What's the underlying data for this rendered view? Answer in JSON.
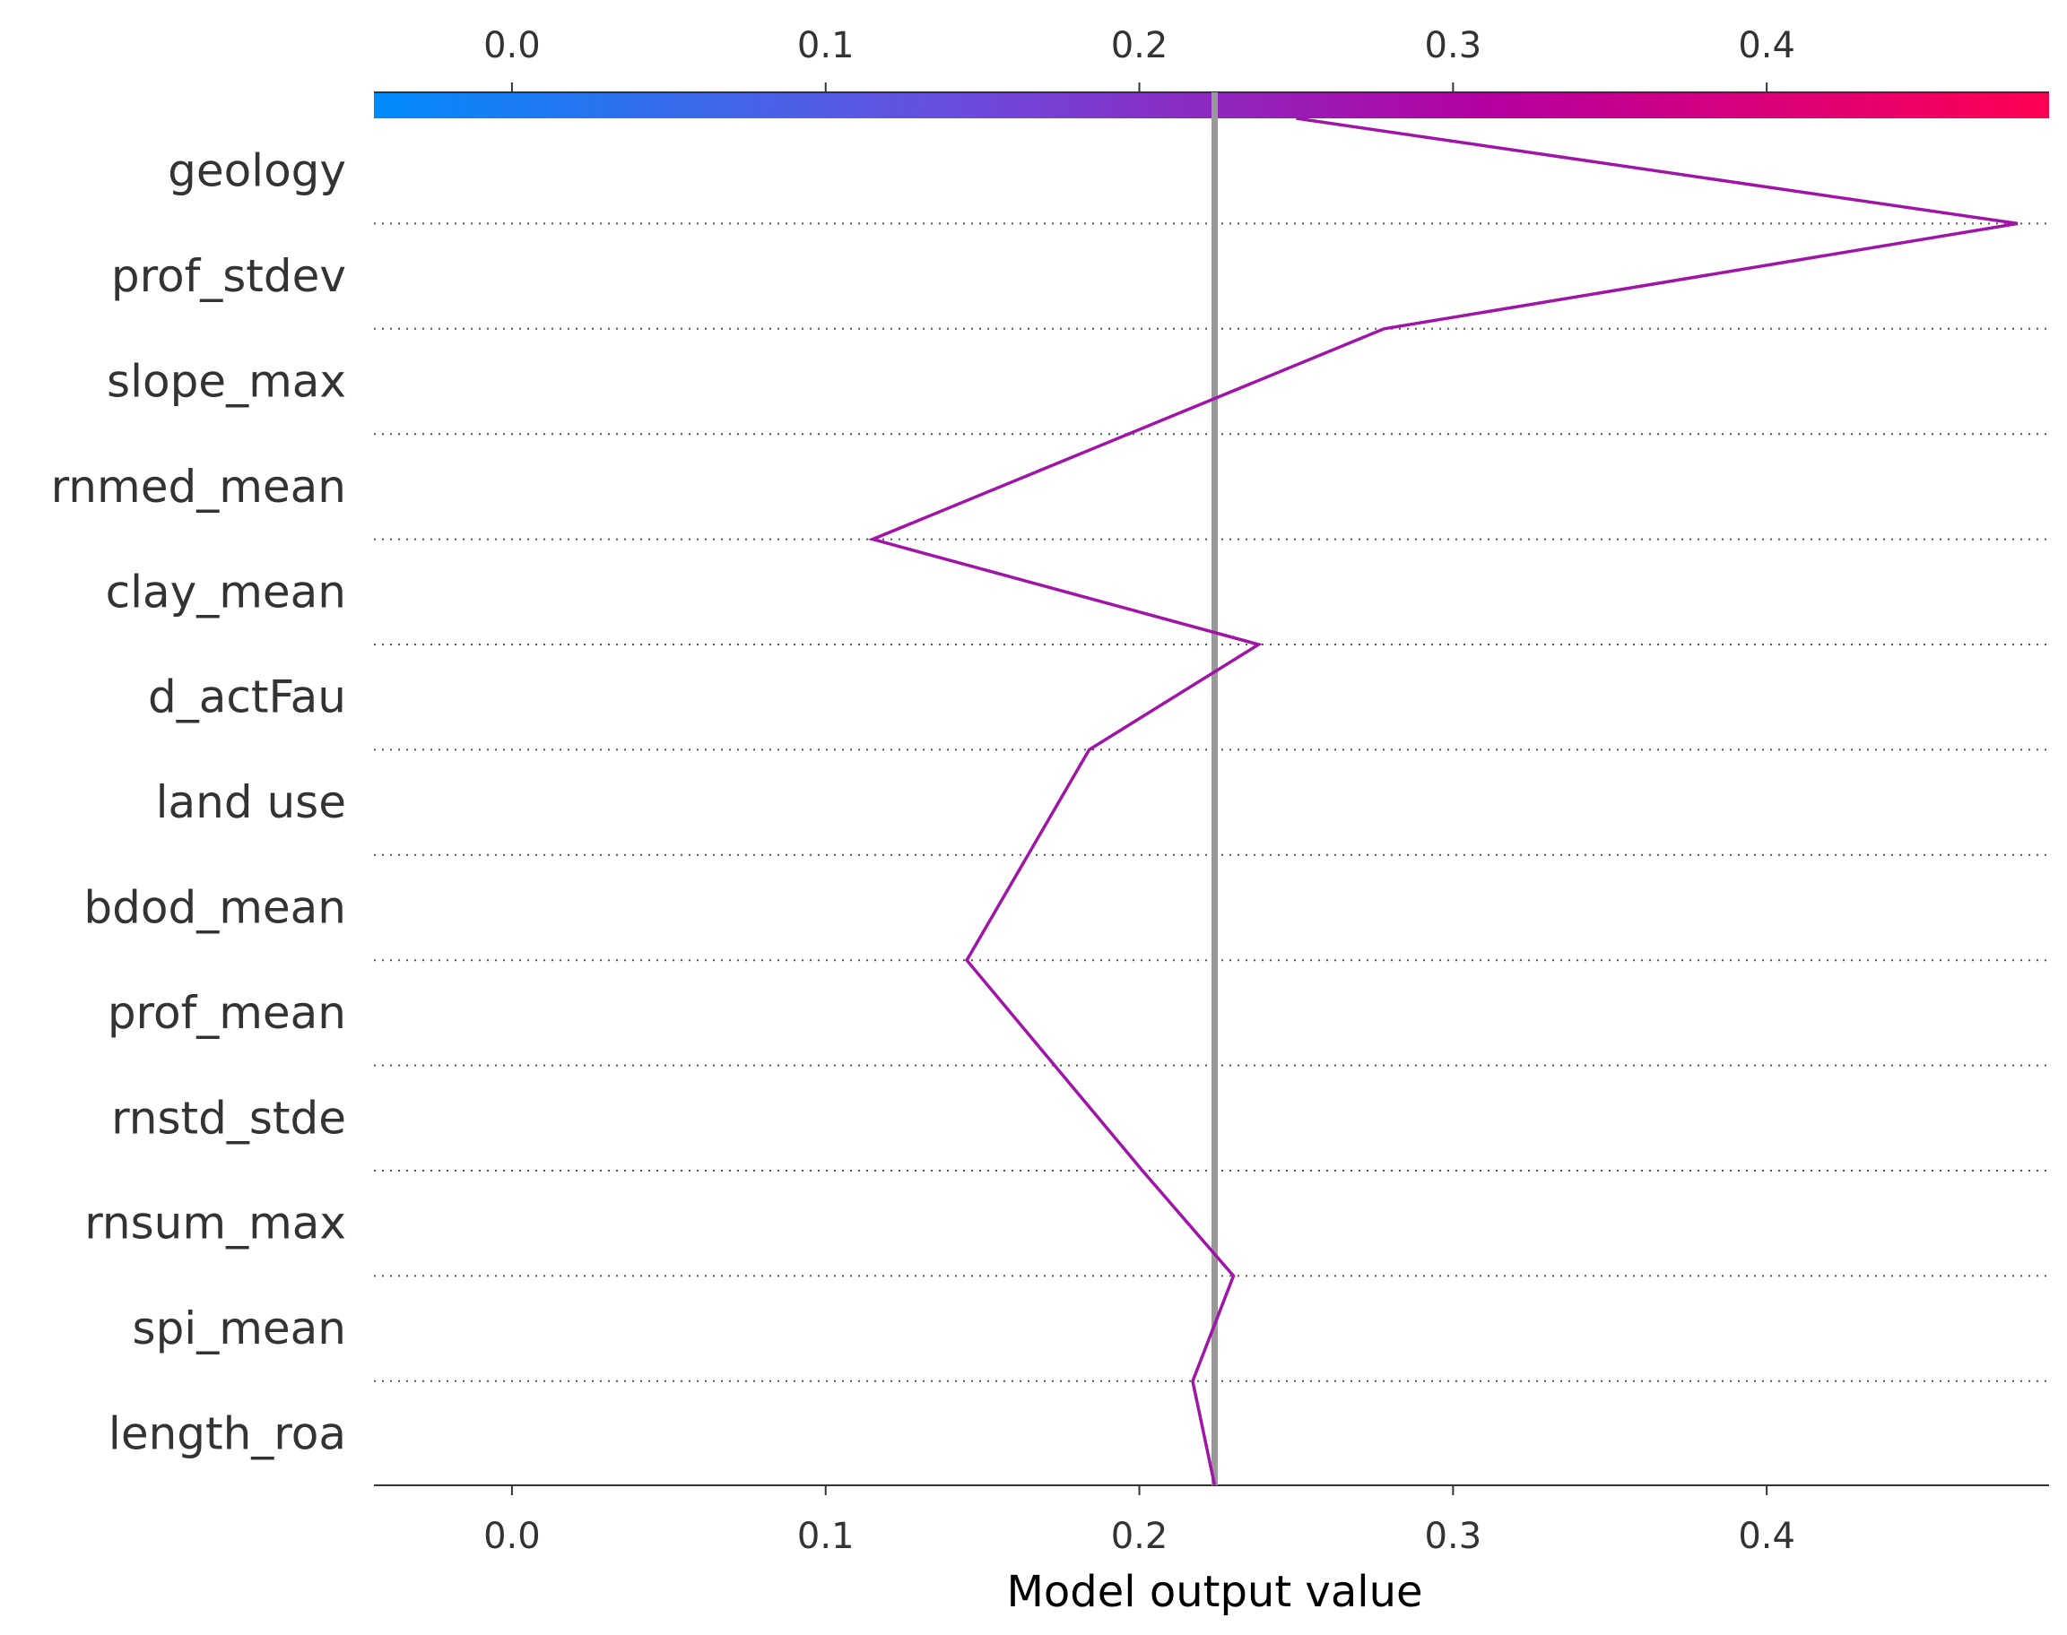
{
  "chart_data": {
    "type": "line",
    "xlabel": "Model output value",
    "xlim": [
      -0.044,
      0.49
    ],
    "xticks": [
      0.0,
      0.1,
      0.2,
      0.3,
      0.4
    ],
    "xtick_labels": [
      "0.0",
      "0.1",
      "0.2",
      "0.3",
      "0.4"
    ],
    "base_value": 0.224,
    "features": [
      "geology",
      "prof_stdev",
      "slope_max",
      "rnmed_mean",
      "clay_mean",
      "d_actFau",
      "land use",
      "bdod_mean",
      "prof_mean",
      "rnstd_stde",
      "rnsum_max",
      "spi_mean",
      "length_roa"
    ],
    "path_values": [
      0.25,
      0.48,
      0.278,
      0.115,
      0.238,
      0.184,
      0.145,
      0.201,
      0.23,
      0.217,
      0.224
    ],
    "path_rows": [
      0,
      1,
      2,
      4,
      5,
      6,
      8,
      10,
      11,
      12,
      13
    ],
    "colorbar": {
      "colors": [
        "#008bfb",
        "#6650e0",
        "#b500a0",
        "#ff0052"
      ],
      "value_range": [
        -0.044,
        0.49
      ]
    },
    "line_color": "#a014a8",
    "base_line_color": "#999999",
    "grid": "dotted horizontal"
  }
}
